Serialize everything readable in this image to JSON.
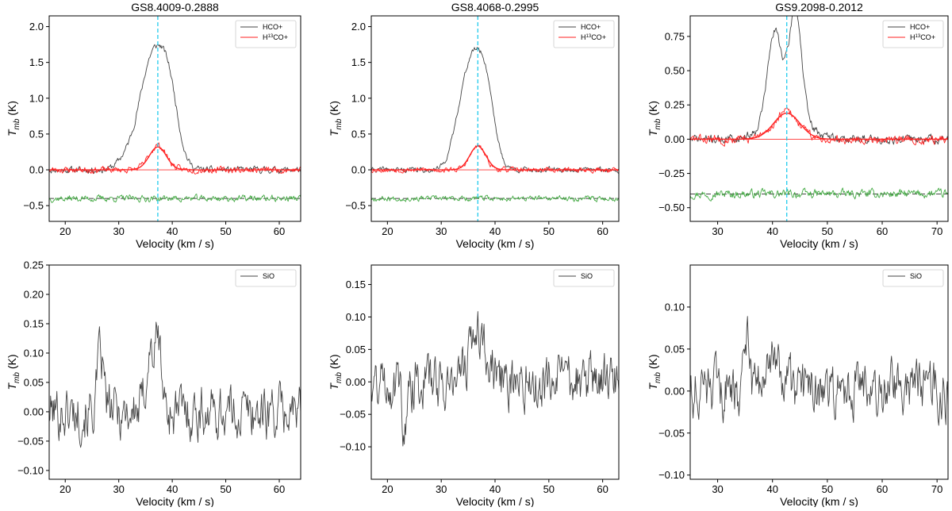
{
  "figure": {
    "name": "HCO+, H13CO+ and SiO spectra of three sources"
  },
  "chart_data": [
    {
      "type": "line",
      "panel": "top-left",
      "title": "GS8.4009-0.2888",
      "xlabel": "Velocity (km / s)",
      "ylabel": "T_mb (K)",
      "ylabel_main": "T",
      "ylabel_sub": "mb",
      "ylabel_unit": " (K)",
      "xlim": [
        17,
        64
      ],
      "ylim": [
        -0.72,
        2.15
      ],
      "xticks": [
        20,
        30,
        40,
        50,
        60
      ],
      "yticks": [
        -0.5,
        0.0,
        0.5,
        1.0,
        1.5,
        2.0
      ],
      "ytick_labels": [
        "−0.5",
        "0.0",
        "0.5",
        "1.0",
        "1.5",
        "2.0"
      ],
      "legend": {
        "position": "top-right",
        "entries": [
          "HCO+",
          "H13CO+"
        ],
        "labels_display": [
          [
            "HCO+",
            "",
            ""
          ],
          [
            "H",
            "13",
            "CO+"
          ]
        ]
      },
      "vline": {
        "x": 37.3,
        "color": "#22ccee",
        "style": "dashed"
      },
      "baseline_fit": {
        "y": 0.0,
        "color": "#ff3333"
      },
      "residual_level": {
        "y": -0.4,
        "style": "dashed",
        "color": "#444444"
      },
      "series": [
        {
          "name": "HCO+",
          "color": "#444444",
          "baseline": 0.0,
          "noise": 0.05,
          "seed": 11,
          "peaks": [
            {
              "center": 36.5,
              "amp": 1.6,
              "width": 2.6
            },
            {
              "center": 39.6,
              "amp": 0.6,
              "width": 1.6
            },
            {
              "center": 31.0,
              "amp": 0.08,
              "width": 1.5
            }
          ]
        },
        {
          "name": "H13CO+",
          "color": "#ff2222",
          "baseline": 0.0,
          "noise": 0.05,
          "seed": 23,
          "peaks": [
            {
              "center": 37.3,
              "amp": 0.34,
              "width": 1.6
            }
          ]
        },
        {
          "name": "Gaussian fit",
          "color": "#ff2222",
          "baseline": 0.0,
          "noise": 0.0,
          "seed": 1,
          "peaks": [
            {
              "center": 37.3,
              "amp": 0.32,
              "width": 1.6
            }
          ]
        },
        {
          "name": "residual",
          "color": "#44aa44",
          "baseline": -0.4,
          "noise": 0.05,
          "seed": 37,
          "peaks": []
        }
      ]
    },
    {
      "type": "line",
      "panel": "top-middle",
      "title": "GS8.4068-0.2995",
      "xlabel": "Velocity (km / s)",
      "ylabel": "T_mb (K)",
      "ylabel_main": "T",
      "ylabel_sub": "mb",
      "ylabel_unit": " (K)",
      "xlim": [
        17,
        63
      ],
      "ylim": [
        -0.72,
        2.15
      ],
      "xticks": [
        20,
        30,
        40,
        50,
        60
      ],
      "yticks": [
        -0.5,
        0.0,
        0.5,
        1.0,
        1.5,
        2.0
      ],
      "ytick_labels": [
        "−0.5",
        "0.0",
        "0.5",
        "1.0",
        "1.5",
        "2.0"
      ],
      "legend": {
        "position": "top-right",
        "entries": [
          "HCO+",
          "H13CO+"
        ],
        "labels_display": [
          [
            "HCO+",
            "",
            ""
          ],
          [
            "H",
            "13",
            "CO+"
          ]
        ]
      },
      "vline": {
        "x": 36.8,
        "color": "#22ccee",
        "style": "dashed"
      },
      "baseline_fit": {
        "y": 0.0,
        "color": "#ff3333"
      },
      "residual_level": {
        "y": -0.4,
        "style": "dashed",
        "color": "#444444"
      },
      "series": [
        {
          "name": "HCO+",
          "color": "#444444",
          "baseline": 0.0,
          "noise": 0.04,
          "seed": 41,
          "peaks": [
            {
              "center": 36.4,
              "amp": 1.55,
              "width": 2.2
            },
            {
              "center": 33.5,
              "amp": 0.35,
              "width": 1.6
            },
            {
              "center": 38.8,
              "amp": 0.4,
              "width": 1.3
            }
          ]
        },
        {
          "name": "H13CO+",
          "color": "#ff2222",
          "baseline": 0.0,
          "noise": 0.04,
          "seed": 53,
          "peaks": [
            {
              "center": 36.8,
              "amp": 0.33,
              "width": 1.4
            }
          ]
        },
        {
          "name": "Gaussian fit",
          "color": "#ff2222",
          "baseline": 0.0,
          "noise": 0.0,
          "seed": 1,
          "peaks": [
            {
              "center": 36.8,
              "amp": 0.33,
              "width": 1.5
            }
          ]
        },
        {
          "name": "residual",
          "color": "#44aa44",
          "baseline": -0.4,
          "noise": 0.04,
          "seed": 67,
          "peaks": []
        }
      ]
    },
    {
      "type": "line",
      "panel": "top-right",
      "title": "GS9.2098-0.2012",
      "xlabel": "Velocity (km / s)",
      "ylabel": "T_mb (K)",
      "ylabel_main": "T",
      "ylabel_sub": "mb",
      "ylabel_unit": " (K)",
      "xlim": [
        25,
        72
      ],
      "ylim": [
        -0.6,
        0.9
      ],
      "xticks": [
        30,
        40,
        50,
        60,
        70
      ],
      "yticks": [
        -0.5,
        -0.25,
        0.0,
        0.25,
        0.5,
        0.75
      ],
      "ytick_labels": [
        "−0.50",
        "−0.25",
        "0.00",
        "0.25",
        "0.50",
        "0.75"
      ],
      "legend": {
        "position": "top-right",
        "entries": [
          "HCO+",
          "H13CO+"
        ],
        "labels_display": [
          [
            "HCO+",
            "",
            ""
          ],
          [
            "H",
            "13",
            "CO+"
          ]
        ]
      },
      "vline": {
        "x": 42.6,
        "color": "#22ccee",
        "style": "dashed"
      },
      "baseline_fit": {
        "y": 0.0,
        "color": "#ff3333"
      },
      "residual_level": {
        "y": -0.4,
        "style": "dashed",
        "color": "#444444"
      },
      "series": [
        {
          "name": "HCO+",
          "color": "#444444",
          "baseline": 0.0,
          "noise": 0.035,
          "seed": 71,
          "peaks": [
            {
              "center": 40.4,
              "amp": 0.62,
              "width": 1.3
            },
            {
              "center": 44.2,
              "amp": 0.78,
              "width": 1.1
            },
            {
              "center": 42.5,
              "amp": 0.2,
              "width": 3.5
            }
          ]
        },
        {
          "name": "H13CO+",
          "color": "#ff2222",
          "baseline": 0.0,
          "noise": 0.035,
          "seed": 83,
          "peaks": [
            {
              "center": 42.6,
              "amp": 0.2,
              "width": 2.2
            }
          ]
        },
        {
          "name": "Gaussian fit",
          "color": "#ff2222",
          "baseline": 0.0,
          "noise": 0.0,
          "seed": 1,
          "peaks": [
            {
              "center": 42.6,
              "amp": 0.19,
              "width": 2.4
            }
          ]
        },
        {
          "name": "residual",
          "color": "#44aa44",
          "baseline": -0.4,
          "noise": 0.035,
          "seed": 97,
          "peaks": []
        }
      ]
    },
    {
      "type": "line",
      "panel": "bottom-left",
      "title": "",
      "xlabel": "Velocity (km / s)",
      "ylabel": "T_mb (K)",
      "ylabel_main": "T",
      "ylabel_sub": "mb",
      "ylabel_unit": " (K)",
      "xlim": [
        17,
        64
      ],
      "ylim": [
        -0.115,
        0.25
      ],
      "xticks": [
        20,
        30,
        40,
        50,
        60
      ],
      "yticks": [
        -0.1,
        -0.05,
        0.0,
        0.05,
        0.1,
        0.15,
        0.2,
        0.25
      ],
      "ytick_labels": [
        "−0.10",
        "−0.05",
        "0.00",
        "0.05",
        "0.10",
        "0.15",
        "0.20",
        "0.25"
      ],
      "legend": {
        "position": "top-right",
        "entries": [
          "SiO"
        ],
        "labels_display": [
          [
            "SiO",
            "",
            ""
          ]
        ]
      },
      "series": [
        {
          "name": "SiO",
          "color": "#444444",
          "baseline": 0.0,
          "noise": 0.05,
          "seed": 101,
          "peaks": [
            {
              "center": 26.6,
              "amp": 0.09,
              "width": 0.6
            },
            {
              "center": 35.8,
              "amp": 0.1,
              "width": 0.7
            },
            {
              "center": 37.4,
              "amp": 0.12,
              "width": 0.6
            }
          ]
        }
      ]
    },
    {
      "type": "line",
      "panel": "bottom-middle",
      "title": "",
      "xlabel": "Velocity (km / s)",
      "ylabel": "T_mb (K)",
      "ylabel_main": "T",
      "ylabel_sub": "mb",
      "ylabel_unit": " (K)",
      "xlim": [
        17,
        63
      ],
      "ylim": [
        -0.15,
        0.18
      ],
      "xticks": [
        20,
        30,
        40,
        50,
        60
      ],
      "yticks": [
        -0.1,
        -0.05,
        0.0,
        0.05,
        0.1,
        0.15
      ],
      "ytick_labels": [
        "−0.10",
        "−0.05",
        "0.00",
        "0.05",
        "0.10",
        "0.15"
      ],
      "legend": {
        "position": "top-right",
        "entries": [
          "SiO"
        ],
        "labels_display": [
          [
            "SiO",
            "",
            ""
          ]
        ]
      },
      "series": [
        {
          "name": "SiO",
          "color": "#444444",
          "baseline": 0.0,
          "noise": 0.045,
          "seed": 131,
          "peaks": [
            {
              "center": 36.8,
              "amp": 0.08,
              "width": 1.6
            },
            {
              "center": 23.3,
              "amp": -0.08,
              "width": 0.5
            }
          ]
        }
      ]
    },
    {
      "type": "line",
      "panel": "bottom-right",
      "title": "",
      "xlabel": "Velocity (km / s)",
      "ylabel": "T_mb (K)",
      "ylabel_main": "T",
      "ylabel_sub": "mb",
      "ylabel_unit": " (K)",
      "xlim": [
        25,
        72
      ],
      "ylim": [
        -0.105,
        0.15
      ],
      "xticks": [
        30,
        40,
        50,
        60,
        70
      ],
      "yticks": [
        -0.1,
        -0.05,
        0.0,
        0.05,
        0.1
      ],
      "ytick_labels": [
        "−0.10",
        "−0.05",
        "0.00",
        "0.05",
        "0.10"
      ],
      "legend": {
        "position": "top-right",
        "entries": [
          "SiO"
        ],
        "labels_display": [
          [
            "SiO",
            "",
            ""
          ]
        ]
      },
      "series": [
        {
          "name": "SiO",
          "color": "#444444",
          "baseline": 0.0,
          "noise": 0.035,
          "seed": 151,
          "peaks": [
            {
              "center": 35.2,
              "amp": 0.07,
              "width": 0.5
            },
            {
              "center": 40.5,
              "amp": 0.04,
              "width": 1.0
            }
          ]
        }
      ]
    }
  ]
}
